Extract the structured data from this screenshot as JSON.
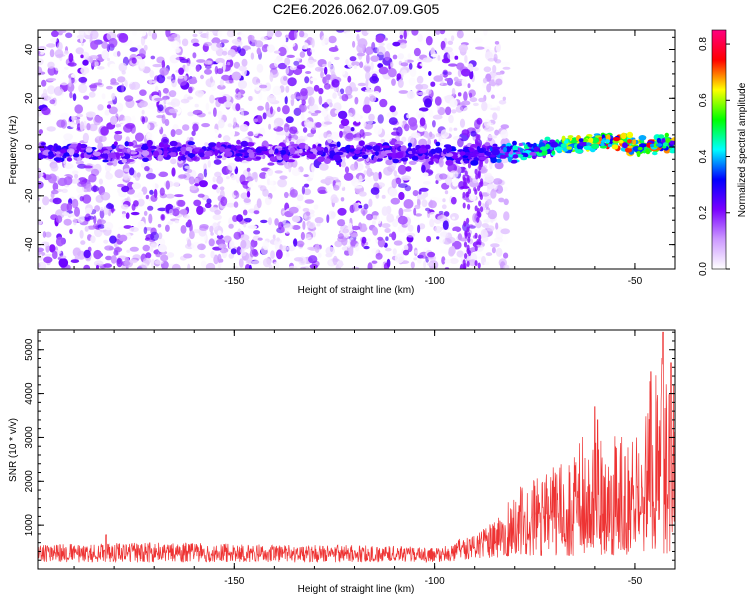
{
  "page": {
    "title": "C2E6.2026.062.07.09.G05"
  },
  "chart_data": [
    {
      "type": "heatmap",
      "title": "C2E6.2026.062.07.09.G05",
      "xlabel": "Height of straight line (km)",
      "ylabel": "Frequency (Hz)",
      "xlim": [
        -199,
        -40
      ],
      "ylim": [
        -50,
        48
      ],
      "x_ticks": [
        -150,
        -100,
        -50
      ],
      "y_ticks": [
        -40,
        -20,
        0,
        20,
        40
      ],
      "x_tick_labels": [
        "-150",
        "-100",
        "-50"
      ],
      "y_tick_labels": [
        "-40",
        "-20",
        "0",
        "20",
        "40"
      ],
      "colorbar": {
        "label": "Normalized spectral amplitude",
        "range": [
          0,
          0.85
        ],
        "ticks": [
          0.0,
          0.2,
          0.4,
          0.6,
          0.8
        ],
        "tick_labels": [
          "0.0",
          "0.2",
          "0.4",
          "0.6",
          "0.8"
        ],
        "colors": [
          "#ffffff",
          "#cc99ff",
          "#7a00ff",
          "#0000ff",
          "#00ffff",
          "#00ff00",
          "#ffff00",
          "#ff0000",
          "#ff0080"
        ]
      },
      "signal_band": {
        "description_frequency_center_hz": [
          [
            -199,
            -2
          ],
          [
            -150,
            -2
          ],
          [
            -120,
            -2
          ],
          [
            -100,
            -3
          ],
          [
            -90,
            -3
          ],
          [
            -80,
            -2
          ],
          [
            -70,
            0
          ],
          [
            -60,
            2
          ],
          [
            -55,
            3
          ],
          [
            -50,
            1
          ],
          [
            -40,
            1
          ]
        ],
        "peak_amplitude_by_height": [
          [
            -199,
            0.3
          ],
          [
            -150,
            0.3
          ],
          [
            -110,
            0.3
          ],
          [
            -90,
            0.32
          ],
          [
            -80,
            0.45
          ],
          [
            -70,
            0.6
          ],
          [
            -60,
            0.75
          ],
          [
            -50,
            0.8
          ],
          [
            -40,
            0.7
          ]
        ]
      },
      "noise_extent_km": [
        -199,
        -88
      ]
    },
    {
      "type": "line",
      "xlabel": "Height of straight line (km)",
      "ylabel": "SNR (10 * v/v)",
      "xlim": [
        -199,
        -40
      ],
      "ylim": [
        0,
        5450
      ],
      "x_ticks": [
        -150,
        -100,
        -50
      ],
      "y_ticks": [
        1000,
        2000,
        3000,
        4000,
        5000
      ],
      "x_tick_labels": [
        "-150",
        "-100",
        "-50"
      ],
      "y_tick_labels": [
        "1000",
        "2000",
        "3000",
        "4000",
        "5000"
      ],
      "color": "#ee3333",
      "series": [
        {
          "name": "SNR",
          "envelope": [
            [
              -199,
              150,
              550
            ],
            [
              -180,
              150,
              600
            ],
            [
              -160,
              150,
              600
            ],
            [
              -140,
              150,
              550
            ],
            [
              -120,
              150,
              550
            ],
            [
              -100,
              150,
              500
            ],
            [
              -90,
              200,
              800
            ],
            [
              -85,
              250,
              1100
            ],
            [
              -80,
              300,
              1800
            ],
            [
              -75,
              300,
              2200
            ],
            [
              -70,
              300,
              2600
            ],
            [
              -65,
              300,
              2800
            ],
            [
              -60,
              300,
              3500
            ],
            [
              -55,
              300,
              3200
            ],
            [
              -50,
              300,
              3000
            ],
            [
              -45,
              300,
              5100
            ],
            [
              -43,
              300,
              5300
            ],
            [
              -40,
              300,
              4600
            ]
          ],
          "spikes": [
            [
              -182,
              780
            ],
            [
              -43,
              5400
            ],
            [
              -41,
              4700
            ],
            [
              -46,
              4500
            ],
            [
              -60,
              3700
            ]
          ]
        }
      ]
    }
  ]
}
